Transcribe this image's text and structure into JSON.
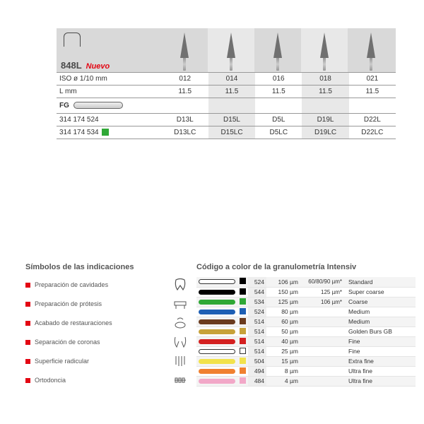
{
  "product": {
    "model": "848L",
    "nuevo": "Nuevo",
    "rows": {
      "iso_label": "ISO ø 1/10 mm",
      "iso": [
        "012",
        "014",
        "016",
        "018",
        "021"
      ],
      "len_label": "L mm",
      "len": [
        "11.5",
        "11.5",
        "11.5",
        "11.5",
        "11.5"
      ],
      "fg_label": "FG",
      "ref1_label": "314 174 524",
      "ref1": [
        "D13L",
        "D15L",
        "D5L",
        "D19L",
        "D22L"
      ],
      "ref2_label": "314 174 534",
      "ref2_color": "#2fa836",
      "ref2": [
        "D13LC",
        "D15LC",
        "D5LC",
        "D19LC",
        "D22LC"
      ]
    },
    "alt_columns": [
      1,
      3
    ]
  },
  "indications": {
    "title": "Símbolos de las indicaciones",
    "items": [
      {
        "label": "Preparación de cavidades",
        "icon": "tooth"
      },
      {
        "label": "Preparación de prótesis",
        "icon": "bridge"
      },
      {
        "label": "Acabado de restauraciones",
        "icon": "polish"
      },
      {
        "label": "Separación de coronas",
        "icon": "separate"
      },
      {
        "label": "Superficie radicular",
        "icon": "roots"
      },
      {
        "label": "Ortodoncia",
        "icon": "braces"
      }
    ]
  },
  "grit": {
    "title": "Código a color de la granulometría Intensiv",
    "rows": [
      {
        "bar": "none",
        "sq": "#000000",
        "code": "524",
        "mu": "106 µm",
        "ext": "60/80/90 µm*",
        "name": "Standard"
      },
      {
        "bar": "#000000",
        "sq": "#000000",
        "code": "544",
        "mu": "150 µm",
        "ext": "125 µm*",
        "name": "Super coarse"
      },
      {
        "bar": "#2fa836",
        "sq": "#2fa836",
        "code": "534",
        "mu": "125 µm",
        "ext": "106 µm*",
        "name": "Coarse"
      },
      {
        "bar": "#1e5fb4",
        "sq": "#1e5fb4",
        "code": "524",
        "mu": "80 µm",
        "ext": "",
        "name": "Medium"
      },
      {
        "bar": "#6b3b1e",
        "sq": "#6b3b1e",
        "code": "514",
        "mu": "60 µm",
        "ext": "",
        "name": "Medium"
      },
      {
        "bar": "#c7a23a",
        "sq": "#c7a23a",
        "code": "514",
        "mu": "50 µm",
        "ext": "",
        "name": "Golden Burs GB"
      },
      {
        "bar": "#d42020",
        "sq": "#d42020",
        "code": "514",
        "mu": "40 µm",
        "ext": "",
        "name": "Fine"
      },
      {
        "bar": "none",
        "sq": "none",
        "code": "514",
        "mu": "25 µm",
        "ext": "",
        "name": "Fine"
      },
      {
        "bar": "#f2e24b",
        "sq": "#f2e24b",
        "code": "504",
        "mu": "15 µm",
        "ext": "",
        "name": "Extra fine"
      },
      {
        "bar": "#f08030",
        "sq": "#f08030",
        "code": "494",
        "mu": "8 µm",
        "ext": "",
        "name": "Ultra fine"
      },
      {
        "bar": "#f2a8c8",
        "sq": "#f2a8c8",
        "code": "484",
        "mu": "4 µm",
        "ext": "",
        "name": "Ultra fine"
      }
    ]
  }
}
